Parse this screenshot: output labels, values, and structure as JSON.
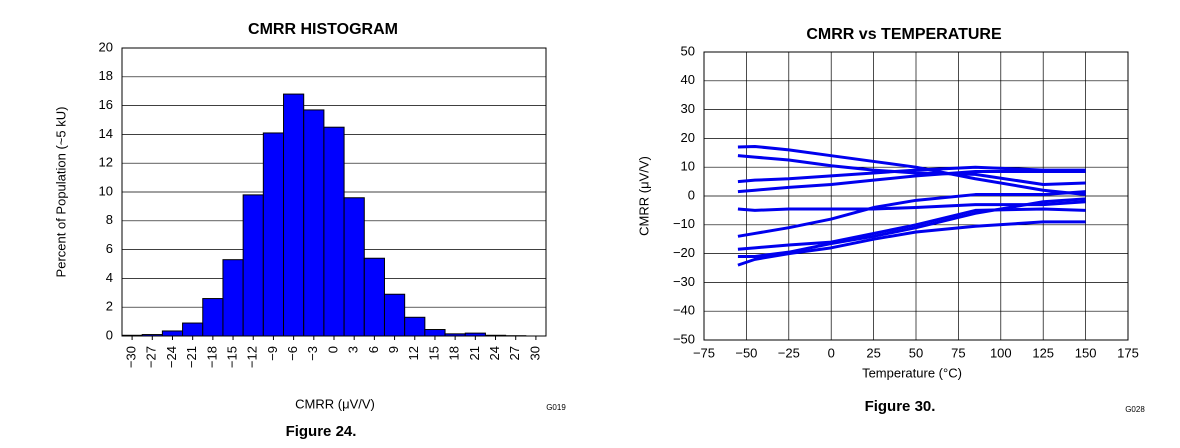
{
  "chart_data": [
    {
      "type": "histogram",
      "title": "CMRR HISTOGRAM",
      "xlabel": "CMRR (μV/V)",
      "ylabel": "Percent of Population (~5 kU)",
      "code": "G019",
      "caption": "Figure 24.",
      "bins": [
        -31.5,
        -28.5,
        -25.5,
        -22.5,
        -19.5,
        -16.5,
        -13.5,
        -10.5,
        -7.5,
        -4.5,
        -1.5,
        1.5,
        4.5,
        7.5,
        10.5,
        13.5,
        16.5,
        19.5,
        22.5,
        25.5,
        28.5,
        31.5
      ],
      "values": [
        0.05,
        0.1,
        0.35,
        0.9,
        2.6,
        5.3,
        9.8,
        14.1,
        16.8,
        15.7,
        14.5,
        9.6,
        5.4,
        2.9,
        1.3,
        0.45,
        0.15,
        0.2,
        0.05,
        0.02,
        0
      ],
      "color": "#0000ff",
      "xlim": [
        -31.5,
        31.5
      ],
      "xticks": [
        {
          "value": -30,
          "label": "−30"
        },
        {
          "value": -27,
          "label": "−27"
        },
        {
          "value": -24,
          "label": "−24"
        },
        {
          "value": -21,
          "label": "−21"
        },
        {
          "value": -18,
          "label": "−18"
        },
        {
          "value": -15,
          "label": "−15"
        },
        {
          "value": -12,
          "label": "−12"
        },
        {
          "value": -9,
          "label": "−9"
        },
        {
          "value": -6,
          "label": "−6"
        },
        {
          "value": -3,
          "label": "−3"
        },
        0,
        3,
        6,
        9,
        12,
        15,
        18,
        21,
        24,
        27,
        30
      ],
      "ylim": [
        0,
        20
      ],
      "yticks": [
        0,
        2,
        4,
        6,
        8,
        10,
        12,
        14,
        16,
        18,
        20
      ],
      "grid": true
    },
    {
      "type": "line",
      "title": "CMRR vs TEMPERATURE",
      "xlabel": "Temperature (°C)",
      "ylabel": "CMRR (μV/V)",
      "code": "G028",
      "caption": "Figure 30.",
      "x": [
        -55,
        -45,
        -25,
        0,
        25,
        50,
        85,
        125,
        150
      ],
      "series": [
        {
          "color": "#0000ee",
          "values": [
            17,
            17.2,
            16,
            14,
            12,
            10,
            6,
            2,
            0.5
          ]
        },
        {
          "color": "#0000ee",
          "values": [
            14,
            13.5,
            12.5,
            10.5,
            9,
            8,
            7.5,
            4,
            4.5
          ]
        },
        {
          "color": "#0000ee",
          "values": [
            5,
            5.5,
            6,
            7,
            8,
            9,
            10,
            9,
            9
          ]
        },
        {
          "color": "#0000ee",
          "values": [
            1.5,
            2,
            3,
            4,
            5.5,
            7,
            8.5,
            8.5,
            8.5
          ]
        },
        {
          "color": "#0000ee",
          "values": [
            -4.5,
            -5,
            -4.5,
            -4.5,
            -4.5,
            -4,
            -3,
            -3,
            -2
          ]
        },
        {
          "color": "#0000ee",
          "values": [
            -14,
            -13,
            -11,
            -8,
            -4,
            -1.5,
            0.5,
            0.5,
            1.5
          ]
        },
        {
          "color": "#0000ee",
          "values": [
            -18.5,
            -18,
            -17,
            -16,
            -13,
            -10,
            -5,
            -4.5,
            -5
          ]
        },
        {
          "color": "#0000ee",
          "values": [
            -21,
            -21,
            -19.5,
            -16.5,
            -14,
            -11,
            -6,
            -2,
            -1
          ]
        },
        {
          "color": "#0000ee",
          "values": [
            -24,
            -22,
            -20,
            -18,
            -15,
            -12.5,
            -10.5,
            -9,
            -9
          ]
        }
      ],
      "xlim": [
        -75,
        175
      ],
      "xticks": [
        {
          "value": -75,
          "label": "−75"
        },
        {
          "value": -50,
          "label": "−50"
        },
        {
          "value": -25,
          "label": "−25"
        },
        0,
        25,
        50,
        75,
        100,
        125,
        150,
        175
      ],
      "ylim": [
        -50,
        50
      ],
      "yticks": [
        {
          "value": -50,
          "label": "−50"
        },
        {
          "value": -40,
          "label": "−40"
        },
        {
          "value": -30,
          "label": "−30"
        },
        {
          "value": -20,
          "label": "−20"
        },
        {
          "value": -10,
          "label": "−10"
        },
        0,
        10,
        20,
        30,
        40,
        50
      ],
      "grid": true
    }
  ]
}
